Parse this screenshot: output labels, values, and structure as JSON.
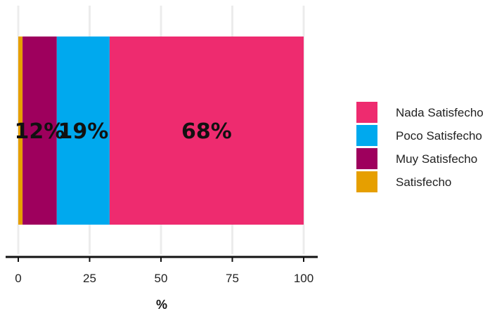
{
  "chart_data": {
    "type": "bar",
    "orientation": "horizontal",
    "stacked": true,
    "xlabel": "%",
    "ylabel": "",
    "xlim": [
      0,
      100
    ],
    "xticks": [
      "0",
      "25",
      "50",
      "75",
      "100"
    ],
    "grid": true,
    "legend_position": "right",
    "series": [
      {
        "name": "Satisfecho",
        "value": 1.5,
        "label": "",
        "color": "#E69F00"
      },
      {
        "name": "Muy Satisfecho",
        "value": 12,
        "label": "12%",
        "color": "#9E005D"
      },
      {
        "name": "Poco Satisfecho",
        "value": 18.5,
        "label": "19%",
        "color": "#00A9EE"
      },
      {
        "name": "Nada Satisfecho",
        "value": 68,
        "label": "68%",
        "color": "#EE2B6F"
      }
    ],
    "legend": [
      "Nada Satisfecho",
      "Poco Satisfecho",
      "Muy Satisfecho",
      "Satisfecho"
    ]
  }
}
